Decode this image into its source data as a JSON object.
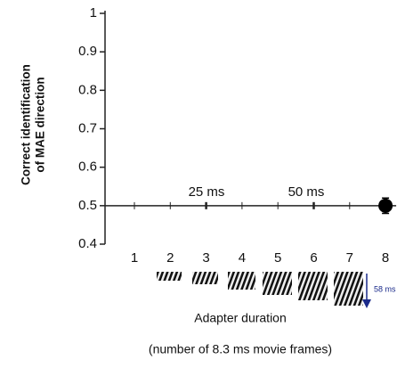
{
  "chart_data": {
    "type": "scatter",
    "y_label": [
      "Correct identification",
      "of MAE direction"
    ],
    "x_label": "Adapter duration",
    "x_sublabel": "(number of 8.3 ms movie frames)",
    "categories": [
      "1",
      "2",
      "3",
      "4",
      "5",
      "6",
      "7",
      "8"
    ],
    "series": [
      {
        "color": "#000000",
        "values": [
          null,
          null,
          null,
          null,
          null,
          null,
          null,
          0.5
        ],
        "errors": [
          null,
          null,
          null,
          null,
          null,
          null,
          null,
          0.02
        ]
      }
    ],
    "reference_line": 0.5,
    "annotations": [
      "25 ms",
      "50 ms"
    ],
    "arrow_label": "58 ms",
    "ylim": [
      0.4,
      1
    ],
    "yticks": [
      0.4,
      0.5,
      0.6,
      0.7,
      0.8,
      0.9,
      1
    ]
  }
}
